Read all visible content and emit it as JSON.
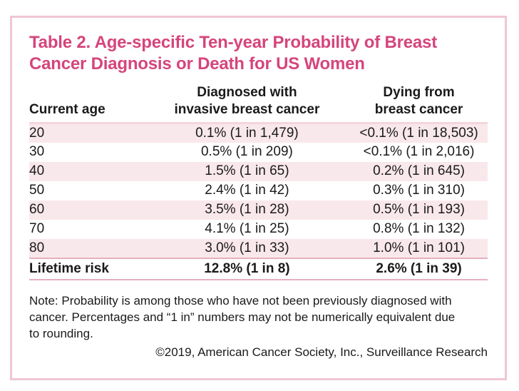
{
  "card": {
    "title_line1": "Table 2. Age-specific Ten-year Probability of Breast",
    "title_line2": "Cancer Diagnosis or Death for US Women"
  },
  "table": {
    "header": {
      "age": "Current age",
      "diagnosed_line1": "Diagnosed with",
      "diagnosed_line2": "invasive breast cancer",
      "dying_line1": "Dying from",
      "dying_line2": "breast cancer"
    },
    "rows": [
      {
        "age": "20",
        "diagnosed": "0.1% (1 in 1,479)",
        "dying": "<0.1% (1 in 18,503)"
      },
      {
        "age": "30",
        "diagnosed": "0.5% (1 in 209)",
        "dying": "<0.1% (1 in 2,016)"
      },
      {
        "age": "40",
        "diagnosed": "1.5% (1 in 65)",
        "dying": "0.2% (1 in 645)"
      },
      {
        "age": "50",
        "diagnosed": "2.4% (1 in 42)",
        "dying": "0.3% (1 in 310)"
      },
      {
        "age": "60",
        "diagnosed": "3.5% (1 in 28)",
        "dying": "0.5% (1 in 193)"
      },
      {
        "age": "70",
        "diagnosed": "4.1% (1 in 25)",
        "dying": "0.8% (1 in 132)"
      },
      {
        "age": "80",
        "diagnosed": "3.0% (1 in 33)",
        "dying": "1.0% (1 in 101)"
      }
    ],
    "lifetime": {
      "age": "Lifetime risk",
      "diagnosed": "12.8% (1 in 8)",
      "dying": "2.6% (1 in 39)"
    }
  },
  "footer": {
    "note": "Note: Probability is among those who have not been previously diagnosed with cancer. Percentages and “1 in” numbers may not be numerically equivalent due to rounding.",
    "credit": "©2019, American Cancer Society, Inc., Surveillance Research"
  },
  "colors": {
    "title_pink": "#d5457b",
    "row_stripe_pink": "#f9e8eb",
    "card_border_pink": "#f0c6d2",
    "rule_pink": "#e6b0c0",
    "header_rule_pink": "#f3d6dc"
  }
}
